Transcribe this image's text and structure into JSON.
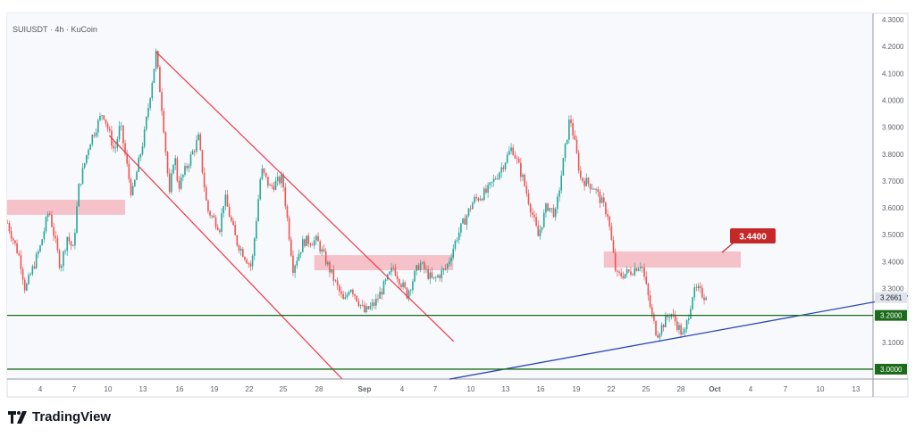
{
  "header": {
    "symbol_title": "SUIUSDT · 4h · KuCoin"
  },
  "branding": {
    "logo_text": "TradingView"
  },
  "colors": {
    "up": "#26a69a",
    "down": "#ef5350",
    "zone": "#f5b8c0",
    "channel": "#f23645",
    "support": "#1b6b1b",
    "trendline": "#2948b8",
    "label_red": "#c62828"
  },
  "chart_data": {
    "type": "candlestick",
    "timeframe": "4h",
    "ylim": [
      2.96,
      4.31
    ],
    "y_ticks": [
      "4.3000",
      "4.2000",
      "4.1000",
      "4.0000",
      "3.9000",
      "3.8000",
      "3.7000",
      "3.6000",
      "3.5000",
      "3.4000",
      "3.3000",
      "3.1000"
    ],
    "x_ticks": [
      "4",
      "7",
      "10",
      "13",
      "16",
      "19",
      "22",
      "25",
      "28",
      "Sep",
      "4",
      "7",
      "10",
      "13",
      "16",
      "19",
      "22",
      "25",
      "28",
      "Oct",
      "4",
      "7",
      "10",
      "13"
    ],
    "last_price": "3.2661",
    "price_path": [
      [
        "Aug 1 04",
        3.544
      ],
      [
        "Aug 2 06",
        3.411
      ],
      [
        "Aug 2 17",
        3.295
      ],
      [
        "Aug 4 00",
        3.454
      ],
      [
        "Aug 4 18",
        3.594
      ],
      [
        "Aug 5 18",
        3.378
      ],
      [
        "Aug 6 08",
        3.494
      ],
      [
        "Aug 6 20",
        3.444
      ],
      [
        "Aug 7 08",
        3.676
      ],
      [
        "Aug 8 06",
        3.842
      ],
      [
        "Aug 9 10",
        3.958
      ],
      [
        "Aug 10 10",
        3.809
      ],
      [
        "Aug 10 22",
        3.909
      ],
      [
        "Aug 11 22",
        3.643
      ],
      [
        "Aug 13 00",
        3.875
      ],
      [
        "Aug 14 00",
        4.174
      ],
      [
        "Aug 14 14",
        3.942
      ],
      [
        "Aug 15 04",
        3.643
      ],
      [
        "Aug 15 14",
        3.809
      ],
      [
        "Aug 15 22",
        3.676
      ],
      [
        "Aug 17 16",
        3.859
      ],
      [
        "Aug 18 10",
        3.594
      ],
      [
        "Aug 19 12",
        3.527
      ],
      [
        "Aug 19 22",
        3.643
      ],
      [
        "Aug 20 22",
        3.477
      ],
      [
        "Aug 22 06",
        3.378
      ],
      [
        "Aug 23 02",
        3.743
      ],
      [
        "Aug 23 20",
        3.676
      ],
      [
        "Aug 24 22",
        3.71
      ],
      [
        "Aug 25 20",
        3.378
      ],
      [
        "Aug 26 18",
        3.477
      ],
      [
        "Aug 27 22",
        3.477
      ],
      [
        "Aug 29 06",
        3.345
      ],
      [
        "Aug 30 06",
        3.245
      ],
      [
        "Aug 30 18",
        3.312
      ],
      [
        "Sep 1 00",
        3.212
      ],
      [
        "Sep 1 22",
        3.245
      ],
      [
        "Sep 3 12",
        3.378
      ],
      [
        "Sep 4 16",
        3.278
      ],
      [
        "Sep 5 18",
        3.395
      ],
      [
        "Sep 6 22",
        3.328
      ],
      [
        "Sep 8 02",
        3.378
      ],
      [
        "Sep 9 00",
        3.494
      ],
      [
        "Sep 10 10",
        3.627
      ],
      [
        "Sep 11 14",
        3.66
      ],
      [
        "Sep 12 18",
        3.743
      ],
      [
        "Sep 13 18",
        3.826
      ],
      [
        "Sep 14 16",
        3.71
      ],
      [
        "Sep 16 00",
        3.494
      ],
      [
        "Sep 16 18",
        3.61
      ],
      [
        "Sep 17 12",
        3.577
      ],
      [
        "Sep 18 18",
        3.942
      ],
      [
        "Sep 19 16",
        3.71
      ],
      [
        "Sep 20 20",
        3.676
      ],
      [
        "Sep 22 00",
        3.577
      ],
      [
        "Sep 22 18",
        3.345
      ],
      [
        "Sep 23 22",
        3.361
      ],
      [
        "Sep 24 22",
        3.395
      ],
      [
        "Sep 25 20",
        3.196
      ],
      [
        "Sep 26 06",
        3.129
      ],
      [
        "Sep 27 10",
        3.212
      ],
      [
        "Sep 28 14",
        3.119
      ],
      [
        "Sep 29 08",
        3.278
      ],
      [
        "Sep 29 18",
        3.295
      ],
      [
        "Sep 30 12",
        3.2661
      ]
    ],
    "zones": [
      {
        "from": "Aug 1 00",
        "to": "Aug 11 08",
        "top": 3.63,
        "bottom": 3.574
      },
      {
        "from": "Aug 27 16",
        "to": "Sep 8 16",
        "top": 3.424,
        "bottom": 3.368
      },
      {
        "from": "Sep 21 16",
        "to": "Oct 3 12",
        "top": 3.438,
        "bottom": 3.378
      }
    ],
    "channel_lines": [
      {
        "from": [
          "Aug 14 00",
          4.18
        ],
        "to": [
          "Sep 8 17",
          3.103
        ]
      },
      {
        "from": [
          "Aug 9 23",
          3.869
        ],
        "to": [
          "Aug 30 02",
          2.963
        ]
      }
    ],
    "trendline": {
      "from": [
        "Sep 8 08",
        2.963
      ],
      "to": [
        "Oct 14 22",
        3.249
      ]
    },
    "support_levels": [
      {
        "price": 3.2,
        "label": "3.2000"
      },
      {
        "price": 3.0,
        "label": "3.0000"
      }
    ],
    "annotation": {
      "label": "3.4400",
      "price": 3.44
    }
  }
}
